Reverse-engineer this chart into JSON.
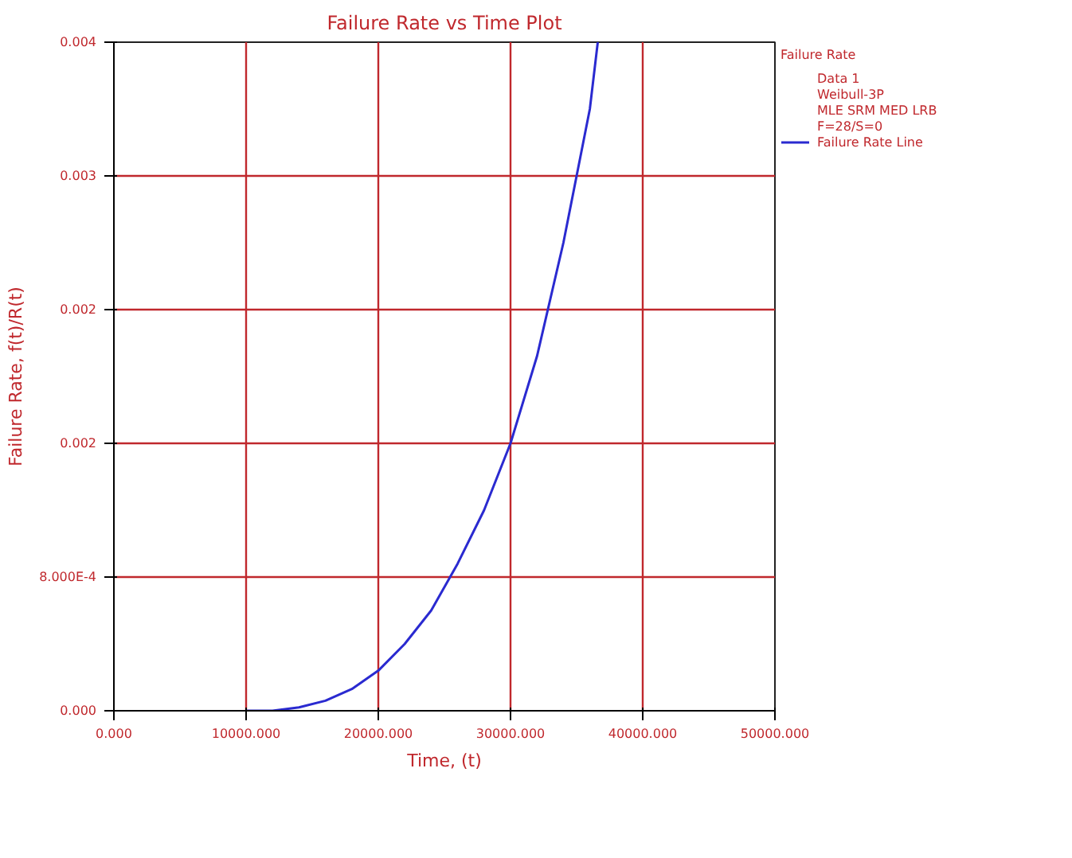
{
  "chart_data": {
    "type": "line",
    "title": "Failure Rate vs Time Plot",
    "xlabel": "Time, (t)",
    "ylabel": "Failure Rate, f(t)/R(t)",
    "legend_title": "Failure Rate",
    "annotations": [
      "Data 1",
      "Weibull-3P",
      "MLE SRM MED LRB",
      "F=28/S=0"
    ],
    "x": [
      10000,
      12000,
      14000,
      16000,
      18000,
      20000,
      22000,
      24000,
      26000,
      28000,
      30000,
      32000,
      34000,
      36000,
      36600
    ],
    "series": [
      {
        "name": "Failure Rate Line",
        "color": "#2a2ad0",
        "values": [
          0,
          0,
          2e-05,
          6e-05,
          0.00013,
          0.00024,
          0.0004,
          0.0006,
          0.00088,
          0.0012,
          0.0016,
          0.00212,
          0.0028,
          0.0036,
          0.004
        ]
      }
    ],
    "xlim": [
      0,
      50000
    ],
    "ylim": [
      0,
      0.004
    ],
    "xticks": [
      {
        "value": 0,
        "label": "0.000"
      },
      {
        "value": 10000,
        "label": "10000.000"
      },
      {
        "value": 20000,
        "label": "20000.000"
      },
      {
        "value": 30000,
        "label": "30000.000"
      },
      {
        "value": 40000,
        "label": "40000.000"
      },
      {
        "value": 50000,
        "label": "50000.000"
      }
    ],
    "yticks": [
      {
        "value": 0,
        "label": "0.000"
      },
      {
        "value": 0.0008,
        "label": "8.000E-4"
      },
      {
        "value": 0.0016,
        "label": "0.002"
      },
      {
        "value": 0.0024,
        "label": "0.002"
      },
      {
        "value": 0.0032,
        "label": "0.003"
      },
      {
        "value": 0.004,
        "label": "0.004"
      }
    ],
    "grid": true,
    "legend": "right",
    "marker": "none",
    "line_style": "solid"
  }
}
